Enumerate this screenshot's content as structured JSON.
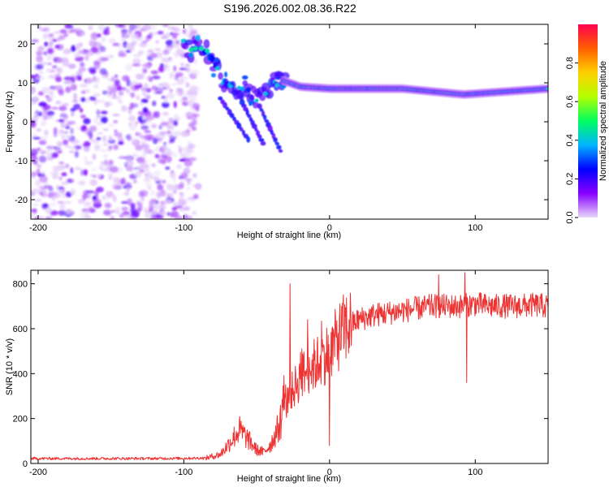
{
  "title": "S196.2026.002.08.36.R22",
  "chart_data": [
    {
      "type": "heatmap",
      "name": "spectrogram",
      "xlabel": "Height of straight line (km)",
      "ylabel": "Frequency (Hz)",
      "xlim": [
        -205,
        150
      ],
      "ylim": [
        -25,
        25
      ],
      "xticks": [
        -200,
        -100,
        0,
        100
      ],
      "yticks": [
        -20,
        -10,
        0,
        10,
        20
      ],
      "dominant_ridge": [
        {
          "x": -100,
          "y": 18
        },
        {
          "x": -90,
          "y": 19
        },
        {
          "x": -82,
          "y": 18
        },
        {
          "x": -76,
          "y": 12
        },
        {
          "x": -70,
          "y": 10
        },
        {
          "x": -62,
          "y": 8
        },
        {
          "x": -55,
          "y": 7
        },
        {
          "x": -45,
          "y": 6
        },
        {
          "x": -35,
          "y": 11
        },
        {
          "x": -20,
          "y": 9
        },
        {
          "x": 0,
          "y": 8.5
        },
        {
          "x": 50,
          "y": 8.5
        },
        {
          "x": 92,
          "y": 7
        },
        {
          "x": 150,
          "y": 8.5
        }
      ],
      "colorbar": {
        "label": "Normalized spectral amplitude",
        "range": [
          0,
          1
        ],
        "ticks": [
          0.0,
          0.2,
          0.4,
          0.6,
          0.8
        ],
        "colors": [
          "#e8d8f8",
          "#8800ff",
          "#0000ff",
          "#00b4ff",
          "#00ff60",
          "#b4ff00",
          "#ffd000",
          "#ff6000",
          "#ff0050"
        ]
      }
    },
    {
      "type": "line",
      "name": "snr",
      "xlabel": "Height of straight line (km)",
      "ylabel": "SNR (10 * v/v)",
      "xlim": [
        -205,
        150
      ],
      "ylim": [
        0,
        860
      ],
      "xticks": [
        -200,
        -100,
        0,
        100
      ],
      "yticks": [
        0,
        200,
        400,
        600,
        800
      ],
      "color": "#ee3333",
      "trend": {
        "x": [
          -205,
          -120,
          -85,
          -75,
          -70,
          -62,
          -55,
          -50,
          -45,
          -40,
          -35,
          -30,
          -25,
          -20,
          -15,
          -10,
          -5,
          0,
          10,
          20,
          30,
          40,
          50,
          60,
          70,
          80,
          90,
          100,
          110,
          120,
          130,
          140,
          150
        ],
        "y": [
          22,
          22,
          24,
          40,
          80,
          150,
          100,
          60,
          50,
          90,
          160,
          260,
          330,
          380,
          420,
          440,
          470,
          500,
          600,
          640,
          660,
          670,
          680,
          690,
          700,
          700,
          700,
          710,
          700,
          700,
          700,
          705,
          700
        ]
      },
      "spikes": [
        {
          "x": -27,
          "y": 800
        },
        {
          "x": -19,
          "y": 510
        },
        {
          "x": -15,
          "y": 640
        },
        {
          "x": 0,
          "y": 80
        },
        {
          "x": 75,
          "y": 840
        },
        {
          "x": 93,
          "y": 850
        },
        {
          "x": 94,
          "y": 360
        }
      ]
    }
  ]
}
